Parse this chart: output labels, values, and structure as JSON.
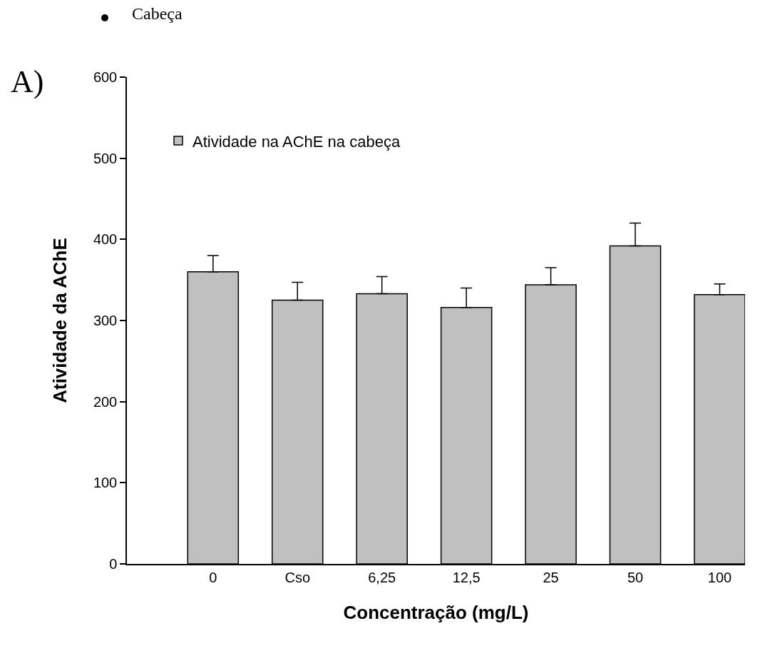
{
  "chart_data": {
    "type": "bar",
    "xlabel": "Concentração (mg/L)",
    "ylabel": "Atividade da AChE",
    "annotations": [
      "Cabeça",
      "A)"
    ],
    "categories": [
      "0",
      "Cso",
      "6,25",
      "12,5",
      "25",
      "50",
      "100"
    ],
    "series": [
      {
        "name": "Atividade na AChE na cabeça",
        "color": "#c0c0c0",
        "values": [
          360,
          325,
          333,
          316,
          344,
          392,
          332
        ],
        "errors": [
          [
            360,
            380
          ],
          [
            325,
            347
          ],
          [
            333,
            354
          ],
          [
            316,
            340
          ],
          [
            344,
            365
          ],
          [
            392,
            420
          ],
          [
            332,
            345
          ]
        ]
      }
    ],
    "ylim": [
      0,
      600
    ],
    "yticks": [
      0,
      100,
      200,
      300,
      400,
      500,
      600
    ],
    "grid": false,
    "legend": "top left"
  }
}
